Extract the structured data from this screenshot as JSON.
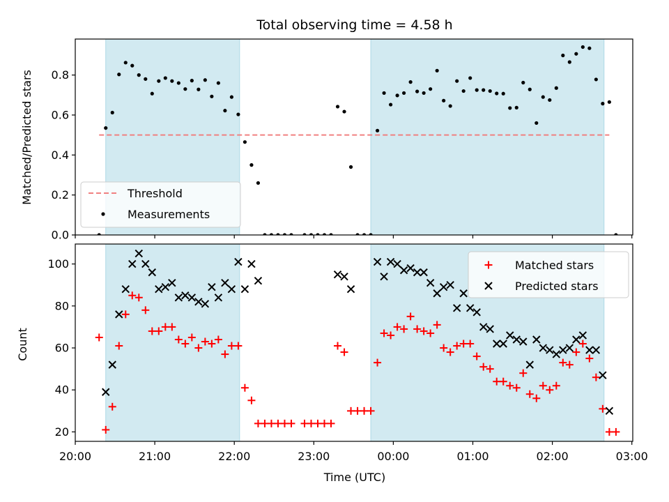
{
  "chart_data": [
    {
      "type": "scatter",
      "title": "Total observing time = 4.58 h",
      "ylabel": "Matched/Predicted stars",
      "xlim": [
        "20:00",
        "03:00"
      ],
      "ylim": [
        0,
        0.98
      ],
      "yticks": [
        "0.0",
        "0.2",
        "0.4",
        "0.6",
        "0.8"
      ],
      "shaded_intervals": [
        [
          "20:23",
          "22:04"
        ],
        [
          "23:43",
          "02:39"
        ]
      ],
      "threshold": {
        "name": "Threshold",
        "y": 0.5,
        "x_range": [
          "20:18",
          "02:43"
        ],
        "color": "#f08080",
        "style": "dashed"
      },
      "legend": {
        "position": "lower-left",
        "entries": [
          "Threshold",
          "Measurements"
        ]
      },
      "series": [
        {
          "name": "Measurements",
          "marker": "dot",
          "color": "#000000",
          "points": [
            [
              "20:18",
              0.0
            ],
            [
              "20:23",
              0.535
            ],
            [
              "20:28",
              0.612
            ],
            [
              "20:33",
              0.803
            ],
            [
              "20:38",
              0.862
            ],
            [
              "20:43",
              0.847
            ],
            [
              "20:48",
              0.8
            ],
            [
              "20:53",
              0.78
            ],
            [
              "20:58",
              0.707
            ],
            [
              "21:03",
              0.77
            ],
            [
              "21:08",
              0.785
            ],
            [
              "21:13",
              0.77
            ],
            [
              "21:18",
              0.76
            ],
            [
              "21:23",
              0.73
            ],
            [
              "21:28",
              0.772
            ],
            [
              "21:33",
              0.728
            ],
            [
              "21:38",
              0.775
            ],
            [
              "21:43",
              0.693
            ],
            [
              "21:48",
              0.76
            ],
            [
              "21:53",
              0.622
            ],
            [
              "21:58",
              0.69
            ],
            [
              "22:03",
              0.603
            ],
            [
              "22:08",
              0.465
            ],
            [
              "22:13",
              0.35
            ],
            [
              "22:18",
              0.26
            ],
            [
              "22:23",
              0.0
            ],
            [
              "22:28",
              0.0
            ],
            [
              "22:33",
              0.0
            ],
            [
              "22:38",
              0.0
            ],
            [
              "22:43",
              0.0
            ],
            [
              "22:53",
              0.0
            ],
            [
              "22:58",
              0.0
            ],
            [
              "23:03",
              0.0
            ],
            [
              "23:08",
              0.0
            ],
            [
              "23:13",
              0.0
            ],
            [
              "23:18",
              0.642
            ],
            [
              "23:23",
              0.617
            ],
            [
              "23:28",
              0.34
            ],
            [
              "23:33",
              0.0
            ],
            [
              "23:38",
              0.0
            ],
            [
              "23:43",
              0.0
            ],
            [
              "23:48",
              0.522
            ],
            [
              "23:53",
              0.71
            ],
            [
              "23:58",
              0.652
            ],
            [
              "00:03",
              0.698
            ],
            [
              "00:08",
              0.71
            ],
            [
              "00:13",
              0.765
            ],
            [
              "00:18",
              0.718
            ],
            [
              "00:23",
              0.71
            ],
            [
              "00:28",
              0.73
            ],
            [
              "00:33",
              0.822
            ],
            [
              "00:38",
              0.672
            ],
            [
              "00:43",
              0.645
            ],
            [
              "00:48",
              0.77
            ],
            [
              "00:53",
              0.72
            ],
            [
              "00:58",
              0.785
            ],
            [
              "01:03",
              0.725
            ],
            [
              "01:08",
              0.725
            ],
            [
              "01:13",
              0.72
            ],
            [
              "01:18",
              0.708
            ],
            [
              "01:23",
              0.707
            ],
            [
              "01:28",
              0.635
            ],
            [
              "01:33",
              0.637
            ],
            [
              "01:38",
              0.762
            ],
            [
              "01:43",
              0.728
            ],
            [
              "01:48",
              0.56
            ],
            [
              "01:53",
              0.69
            ],
            [
              "01:58",
              0.675
            ],
            [
              "02:03",
              0.735
            ],
            [
              "02:08",
              0.898
            ],
            [
              "02:13",
              0.865
            ],
            [
              "02:18",
              0.906
            ],
            [
              "02:23",
              0.94
            ],
            [
              "02:28",
              0.934
            ],
            [
              "02:33",
              0.778
            ],
            [
              "02:38",
              0.657
            ],
            [
              "02:43",
              0.665
            ],
            [
              "02:48",
              0.0
            ]
          ]
        }
      ]
    },
    {
      "type": "scatter",
      "xlabel": "Time (UTC)",
      "ylabel": "Count",
      "xlim": [
        "20:00",
        "03:00"
      ],
      "ylim": [
        15.5,
        109.5
      ],
      "xticks": [
        "20:00",
        "21:00",
        "22:00",
        "23:00",
        "00:00",
        "01:00",
        "02:00",
        "03:00"
      ],
      "yticks": [
        "20",
        "40",
        "60",
        "80",
        "100"
      ],
      "shaded_intervals": [
        [
          "20:23",
          "22:04"
        ],
        [
          "23:43",
          "02:39"
        ]
      ],
      "legend": {
        "position": "top-right",
        "entries": [
          "Matched stars",
          "Predicted stars"
        ]
      },
      "series": [
        {
          "name": "Matched stars",
          "marker": "plus",
          "color": "#ff0000",
          "points": [
            [
              "20:18",
              65
            ],
            [
              "20:23",
              21
            ],
            [
              "20:28",
              32
            ],
            [
              "20:33",
              61
            ],
            [
              "20:38",
              76
            ],
            [
              "20:43",
              85
            ],
            [
              "20:48",
              84
            ],
            [
              "20:53",
              78
            ],
            [
              "20:58",
              68
            ],
            [
              "21:03",
              68
            ],
            [
              "21:08",
              70
            ],
            [
              "21:13",
              70
            ],
            [
              "21:18",
              64
            ],
            [
              "21:23",
              62
            ],
            [
              "21:28",
              65
            ],
            [
              "21:33",
              60
            ],
            [
              "21:38",
              63
            ],
            [
              "21:43",
              62
            ],
            [
              "21:48",
              64
            ],
            [
              "21:53",
              57
            ],
            [
              "21:58",
              61
            ],
            [
              "22:03",
              61
            ],
            [
              "22:08",
              41
            ],
            [
              "22:13",
              35
            ],
            [
              "22:18",
              24
            ],
            [
              "22:23",
              24
            ],
            [
              "22:28",
              24
            ],
            [
              "22:33",
              24
            ],
            [
              "22:38",
              24
            ],
            [
              "22:43",
              24
            ],
            [
              "22:53",
              24
            ],
            [
              "22:58",
              24
            ],
            [
              "23:03",
              24
            ],
            [
              "23:08",
              24
            ],
            [
              "23:13",
              24
            ],
            [
              "23:18",
              61
            ],
            [
              "23:23",
              58
            ],
            [
              "23:28",
              30
            ],
            [
              "23:33",
              30
            ],
            [
              "23:38",
              30
            ],
            [
              "23:43",
              30
            ],
            [
              "23:48",
              53
            ],
            [
              "23:53",
              67
            ],
            [
              "23:58",
              66
            ],
            [
              "00:03",
              70
            ],
            [
              "00:08",
              69
            ],
            [
              "00:13",
              75
            ],
            [
              "00:18",
              69
            ],
            [
              "00:23",
              68
            ],
            [
              "00:28",
              67
            ],
            [
              "00:33",
              71
            ],
            [
              "00:38",
              60
            ],
            [
              "00:43",
              58
            ],
            [
              "00:48",
              61
            ],
            [
              "00:53",
              62
            ],
            [
              "00:58",
              62
            ],
            [
              "01:03",
              56
            ],
            [
              "01:08",
              51
            ],
            [
              "01:13",
              50
            ],
            [
              "01:18",
              44
            ],
            [
              "01:23",
              44
            ],
            [
              "01:28",
              42
            ],
            [
              "01:33",
              41
            ],
            [
              "01:38",
              48
            ],
            [
              "01:43",
              38
            ],
            [
              "01:48",
              36
            ],
            [
              "01:53",
              42
            ],
            [
              "01:58",
              40
            ],
            [
              "02:03",
              42
            ],
            [
              "02:08",
              53
            ],
            [
              "02:13",
              52
            ],
            [
              "02:18",
              58
            ],
            [
              "02:23",
              62
            ],
            [
              "02:28",
              55
            ],
            [
              "02:33",
              46
            ],
            [
              "02:38",
              31
            ],
            [
              "02:43",
              20
            ],
            [
              "02:48",
              20
            ]
          ]
        },
        {
          "name": "Predicted stars",
          "marker": "x",
          "color": "#000000",
          "points": [
            [
              "20:23",
              39
            ],
            [
              "20:28",
              52
            ],
            [
              "20:33",
              76
            ],
            [
              "20:38",
              88
            ],
            [
              "20:43",
              100
            ],
            [
              "20:48",
              105
            ],
            [
              "20:53",
              100
            ],
            [
              "20:58",
              96
            ],
            [
              "21:03",
              88
            ],
            [
              "21:08",
              89
            ],
            [
              "21:13",
              91
            ],
            [
              "21:18",
              84
            ],
            [
              "21:23",
              85
            ],
            [
              "21:28",
              84
            ],
            [
              "21:33",
              82
            ],
            [
              "21:38",
              81
            ],
            [
              "21:43",
              89
            ],
            [
              "21:48",
              84
            ],
            [
              "21:53",
              91
            ],
            [
              "21:58",
              88
            ],
            [
              "22:03",
              101
            ],
            [
              "22:08",
              88
            ],
            [
              "22:13",
              100
            ],
            [
              "22:18",
              92
            ],
            [
              "23:18",
              95
            ],
            [
              "23:23",
              94
            ],
            [
              "23:28",
              88
            ],
            [
              "23:48",
              101
            ],
            [
              "23:53",
              94
            ],
            [
              "23:58",
              101
            ],
            [
              "00:03",
              100
            ],
            [
              "00:08",
              97
            ],
            [
              "00:13",
              98
            ],
            [
              "00:18",
              96
            ],
            [
              "00:23",
              96
            ],
            [
              "00:28",
              91
            ],
            [
              "00:33",
              86
            ],
            [
              "00:38",
              89
            ],
            [
              "00:43",
              90
            ],
            [
              "00:48",
              79
            ],
            [
              "00:53",
              86
            ],
            [
              "00:58",
              79
            ],
            [
              "01:03",
              77
            ],
            [
              "01:08",
              70
            ],
            [
              "01:13",
              69
            ],
            [
              "01:18",
              62
            ],
            [
              "01:23",
              62
            ],
            [
              "01:28",
              66
            ],
            [
              "01:33",
              64
            ],
            [
              "01:38",
              63
            ],
            [
              "01:43",
              52
            ],
            [
              "01:48",
              64
            ],
            [
              "01:53",
              60
            ],
            [
              "01:58",
              59
            ],
            [
              "02:03",
              57
            ],
            [
              "02:08",
              59
            ],
            [
              "02:13",
              60
            ],
            [
              "02:18",
              64
            ],
            [
              "02:23",
              66
            ],
            [
              "02:28",
              59
            ],
            [
              "02:33",
              59
            ],
            [
              "02:38",
              47
            ],
            [
              "02:43",
              30
            ]
          ]
        }
      ]
    }
  ],
  "colors": {
    "shade": "#add8e6",
    "threshold": "#f08080",
    "matched": "#ff0000",
    "predicted": "#000000",
    "measurements": "#000000"
  }
}
